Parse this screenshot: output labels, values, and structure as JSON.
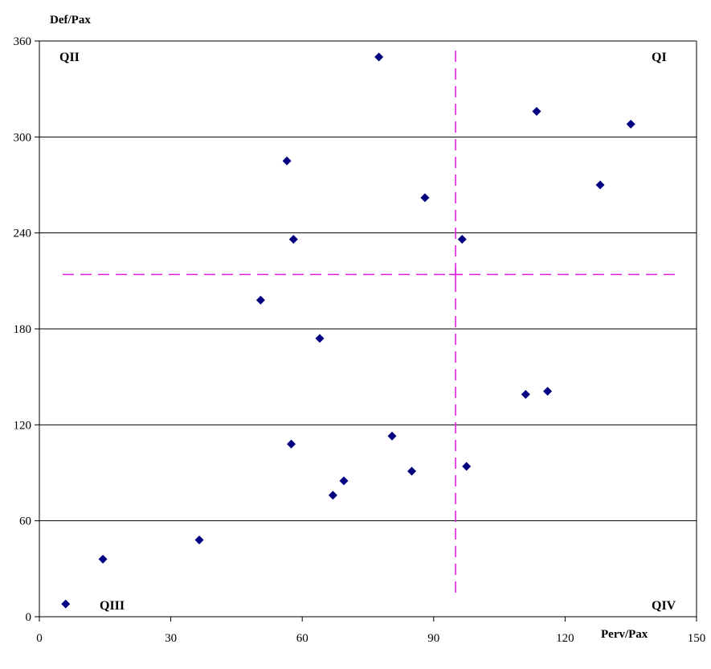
{
  "chart_data": {
    "type": "scatter",
    "ylabel": "Def/Pax",
    "xlabel": "Perv/Pax",
    "xlim": [
      0,
      150
    ],
    "ylim": [
      0,
      360
    ],
    "x_ticks": [
      0,
      30,
      60,
      90,
      120,
      150
    ],
    "y_ticks": [
      0,
      60,
      120,
      180,
      240,
      300,
      360
    ],
    "grid": "horizontal",
    "marker_color": "#000080",
    "reference_line_color": "#E020E0",
    "reference_lines": {
      "x": 95,
      "y": 214
    },
    "quadrant_labels": {
      "q1": "QI",
      "q2": "QII",
      "q3": "QIII",
      "q4": "QIV"
    },
    "points": [
      {
        "x": 6,
        "y": 8
      },
      {
        "x": 14.5,
        "y": 36
      },
      {
        "x": 36.5,
        "y": 48
      },
      {
        "x": 50.5,
        "y": 198
      },
      {
        "x": 56.5,
        "y": 285
      },
      {
        "x": 57.5,
        "y": 108
      },
      {
        "x": 58,
        "y": 236
      },
      {
        "x": 64,
        "y": 174
      },
      {
        "x": 67,
        "y": 76
      },
      {
        "x": 69.5,
        "y": 85
      },
      {
        "x": 77.5,
        "y": 350
      },
      {
        "x": 80.5,
        "y": 113
      },
      {
        "x": 85,
        "y": 91
      },
      {
        "x": 88,
        "y": 262
      },
      {
        "x": 96.5,
        "y": 236
      },
      {
        "x": 97.5,
        "y": 94
      },
      {
        "x": 111,
        "y": 139
      },
      {
        "x": 113.5,
        "y": 316
      },
      {
        "x": 116,
        "y": 141
      },
      {
        "x": 128,
        "y": 270
      },
      {
        "x": 135,
        "y": 308
      }
    ]
  }
}
